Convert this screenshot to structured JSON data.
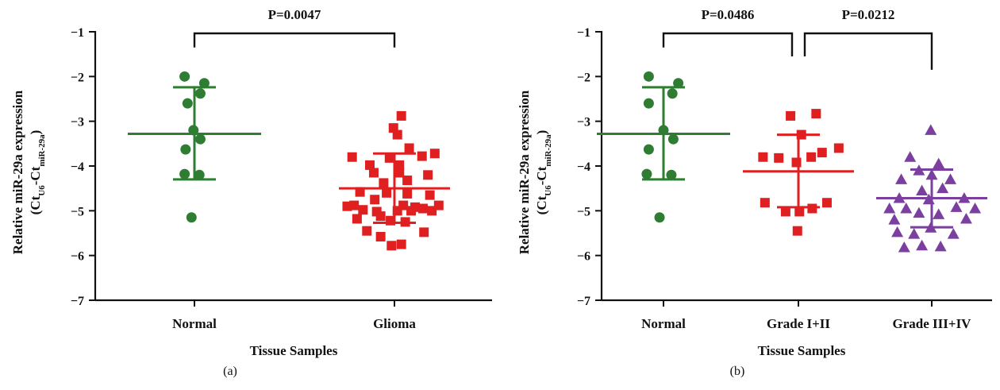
{
  "chart_data": [
    {
      "panel_label": "(a)",
      "type": "scatter",
      "xlabel": "Tissue Samples",
      "ylabel_line1": "Relative miR-29a expression",
      "ylabel_line2": {
        "open": "(Ct",
        "sub1": "U6",
        "mid": "-Ct",
        "sub2": "miR-29a",
        "close": ")"
      },
      "categories": [
        "Normal",
        "Glioma"
      ],
      "ylim": [
        -7,
        -1
      ],
      "yticks": [
        -1,
        -2,
        -3,
        -4,
        -5,
        -6,
        -7
      ],
      "ytick_labels": [
        "−1",
        "−2",
        "−3",
        "−4",
        "−5",
        "−6",
        "−7"
      ],
      "series": [
        {
          "category": "Normal",
          "marker": "circle",
          "color": "#2e7d32",
          "mean": -3.28,
          "sd_upper": -2.24,
          "sd_lower": -4.3,
          "points": [
            {
              "dx": -0.2,
              "y": -2.0
            },
            {
              "dx": 0.2,
              "y": -2.15
            },
            {
              "dx": 0.12,
              "y": -2.38
            },
            {
              "dx": -0.14,
              "y": -2.6
            },
            {
              "dx": -0.02,
              "y": -3.2
            },
            {
              "dx": 0.12,
              "y": -3.4
            },
            {
              "dx": -0.18,
              "y": -3.63
            },
            {
              "dx": -0.2,
              "y": -4.18
            },
            {
              "dx": 0.1,
              "y": -4.2
            },
            {
              "dx": -0.06,
              "y": -5.15
            }
          ]
        },
        {
          "category": "Glioma",
          "marker": "square",
          "color": "#e02020",
          "mean": -4.5,
          "sd_upper": -3.72,
          "sd_lower": -5.27,
          "points": [
            {
              "dx": 0.14,
              "y": -2.88
            },
            {
              "dx": -0.02,
              "y": -3.15
            },
            {
              "dx": 0.06,
              "y": -3.3
            },
            {
              "dx": 0.3,
              "y": -3.6
            },
            {
              "dx": 0.82,
              "y": -3.72
            },
            {
              "dx": 0.56,
              "y": -3.78
            },
            {
              "dx": -0.86,
              "y": -3.8
            },
            {
              "dx": -0.1,
              "y": -3.82
            },
            {
              "dx": -0.5,
              "y": -3.98
            },
            {
              "dx": 0.1,
              "y": -3.98
            },
            {
              "dx": -0.42,
              "y": -4.15
            },
            {
              "dx": 0.1,
              "y": -4.15
            },
            {
              "dx": 0.68,
              "y": -4.2
            },
            {
              "dx": 0.26,
              "y": -4.32
            },
            {
              "dx": -0.22,
              "y": -4.38
            },
            {
              "dx": -0.7,
              "y": -4.58
            },
            {
              "dx": -0.16,
              "y": -4.6
            },
            {
              "dx": 0.26,
              "y": -4.62
            },
            {
              "dx": 0.72,
              "y": -4.65
            },
            {
              "dx": -0.4,
              "y": -4.75
            },
            {
              "dx": -0.82,
              "y": -4.88
            },
            {
              "dx": 0.18,
              "y": -4.88
            },
            {
              "dx": 0.9,
              "y": -4.88
            },
            {
              "dx": -0.96,
              "y": -4.9
            },
            {
              "dx": 0.42,
              "y": -4.92
            },
            {
              "dx": -0.64,
              "y": -4.98
            },
            {
              "dx": 0.58,
              "y": -4.95
            },
            {
              "dx": -0.36,
              "y": -5.02
            },
            {
              "dx": 0.06,
              "y": -5.0
            },
            {
              "dx": 0.34,
              "y": -5.0
            },
            {
              "dx": 0.76,
              "y": -5.0
            },
            {
              "dx": -0.76,
              "y": -5.18
            },
            {
              "dx": -0.28,
              "y": -5.12
            },
            {
              "dx": -0.08,
              "y": -5.22
            },
            {
              "dx": 0.22,
              "y": -5.25
            },
            {
              "dx": 0.6,
              "y": -5.48
            },
            {
              "dx": -0.56,
              "y": -5.45
            },
            {
              "dx": -0.28,
              "y": -5.58
            },
            {
              "dx": 0.14,
              "y": -5.75
            },
            {
              "dx": -0.06,
              "y": -5.78
            }
          ]
        }
      ],
      "brackets": [
        {
          "from": "Normal",
          "to": "Glioma",
          "left_end_y": -1.35,
          "right_end_y": -1.35,
          "label": "P=0.0047"
        }
      ]
    },
    {
      "panel_label": "(b)",
      "type": "scatter",
      "xlabel": "Tissue Samples",
      "ylabel_line1": "Relative miR-29a expression",
      "ylabel_line2": {
        "open": "(Ct",
        "sub1": "U6",
        "mid": "-Ct",
        "sub2": "miR-29a",
        "close": ")"
      },
      "categories": [
        "Normal",
        "Grade I+II",
        "Grade III+IV"
      ],
      "ylim": [
        -7,
        -1
      ],
      "yticks": [
        -1,
        -2,
        -3,
        -4,
        -5,
        -6,
        -7
      ],
      "ytick_labels": [
        "−1",
        "−2",
        "−3",
        "−4",
        "−5",
        "−6",
        "−7"
      ],
      "series": [
        {
          "category": "Normal",
          "marker": "circle",
          "color": "#2e7d32",
          "mean": -3.28,
          "sd_upper": -2.24,
          "sd_lower": -4.3,
          "points": [
            {
              "dx": -0.3,
              "y": -2.0
            },
            {
              "dx": 0.3,
              "y": -2.15
            },
            {
              "dx": 0.18,
              "y": -2.38
            },
            {
              "dx": -0.3,
              "y": -2.6
            },
            {
              "dx": 0.0,
              "y": -3.2
            },
            {
              "dx": 0.2,
              "y": -3.4
            },
            {
              "dx": -0.3,
              "y": -3.63
            },
            {
              "dx": -0.34,
              "y": -4.18
            },
            {
              "dx": 0.16,
              "y": -4.2
            },
            {
              "dx": -0.08,
              "y": -5.15
            }
          ]
        },
        {
          "category": "Grade I+II",
          "marker": "square",
          "color": "#e02020",
          "mean": -4.12,
          "sd_upper": -3.3,
          "sd_lower": -4.92,
          "points": [
            {
              "dx": 0.36,
              "y": -2.83
            },
            {
              "dx": -0.16,
              "y": -2.88
            },
            {
              "dx": 0.06,
              "y": -3.3
            },
            {
              "dx": 0.82,
              "y": -3.6
            },
            {
              "dx": 0.48,
              "y": -3.7
            },
            {
              "dx": -0.72,
              "y": -3.8
            },
            {
              "dx": -0.4,
              "y": -3.82
            },
            {
              "dx": 0.26,
              "y": -3.8
            },
            {
              "dx": -0.04,
              "y": -3.92
            },
            {
              "dx": -0.68,
              "y": -4.82
            },
            {
              "dx": 0.58,
              "y": -4.82
            },
            {
              "dx": 0.28,
              "y": -4.95
            },
            {
              "dx": -0.26,
              "y": -5.02
            },
            {
              "dx": 0.02,
              "y": -5.02
            },
            {
              "dx": -0.02,
              "y": -5.45
            }
          ]
        },
        {
          "category": "Grade III+IV",
          "marker": "triangle",
          "color": "#7b3fa0",
          "mean": -4.72,
          "sd_upper": -4.08,
          "sd_lower": -5.37,
          "points": [
            {
              "dx": -0.02,
              "y": -3.2
            },
            {
              "dx": -0.44,
              "y": -3.8
            },
            {
              "dx": 0.14,
              "y": -3.95
            },
            {
              "dx": -0.26,
              "y": -4.1
            },
            {
              "dx": 0.0,
              "y": -4.2
            },
            {
              "dx": -0.62,
              "y": -4.3
            },
            {
              "dx": 0.38,
              "y": -4.3
            },
            {
              "dx": 0.22,
              "y": -4.5
            },
            {
              "dx": -0.2,
              "y": -4.55
            },
            {
              "dx": -0.66,
              "y": -4.72
            },
            {
              "dx": 0.66,
              "y": -4.72
            },
            {
              "dx": -0.06,
              "y": -4.75
            },
            {
              "dx": -0.86,
              "y": -4.95
            },
            {
              "dx": -0.52,
              "y": -4.95
            },
            {
              "dx": 0.5,
              "y": -4.92
            },
            {
              "dx": 0.88,
              "y": -4.95
            },
            {
              "dx": -0.26,
              "y": -5.05
            },
            {
              "dx": 0.14,
              "y": -5.08
            },
            {
              "dx": -0.76,
              "y": -5.2
            },
            {
              "dx": 0.7,
              "y": -5.18
            },
            {
              "dx": -0.02,
              "y": -5.38
            },
            {
              "dx": -0.36,
              "y": -5.52
            },
            {
              "dx": -0.7,
              "y": -5.48
            },
            {
              "dx": 0.44,
              "y": -5.52
            },
            {
              "dx": -0.56,
              "y": -5.82
            },
            {
              "dx": -0.2,
              "y": -5.78
            },
            {
              "dx": 0.18,
              "y": -5.8
            }
          ]
        }
      ],
      "brackets": [
        {
          "from": "Normal",
          "to": "Grade I+II",
          "left_end_y": -1.35,
          "right_end_y": -1.55,
          "label": "P=0.0486"
        },
        {
          "from": "Grade I+II",
          "to": "Grade III+IV",
          "left_end_y": -1.55,
          "right_end_y": -1.85,
          "label": "P=0.0212"
        }
      ]
    }
  ]
}
